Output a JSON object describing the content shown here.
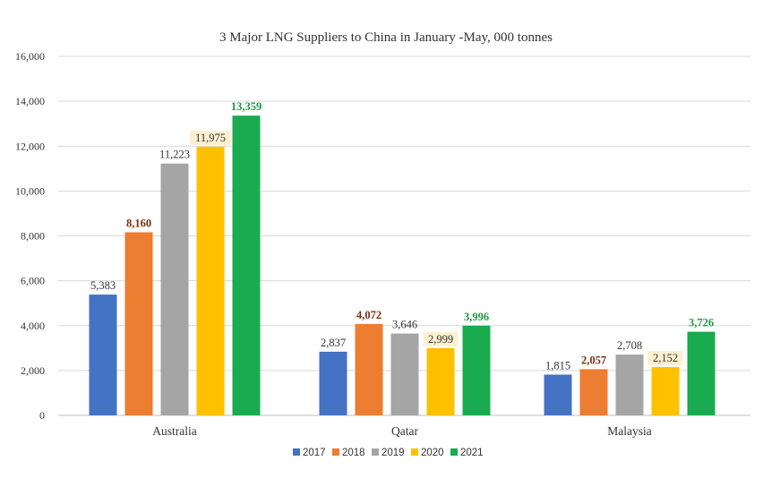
{
  "chart_data": {
    "type": "bar",
    "title": "3 Major LNG Suppliers to China in January -May, 000 tonnes",
    "xlabel": "",
    "ylabel": "",
    "ylim": [
      0,
      16000
    ],
    "yticks": [
      "0",
      "2,000",
      "4,000",
      "6,000",
      "8,000",
      "10,000",
      "12,000",
      "14,000",
      "16,000"
    ],
    "grid": true,
    "legend_position": "bottom",
    "categories": [
      "Australia",
      "Qatar",
      "Malaysia"
    ],
    "series": [
      {
        "name": "2017",
        "color": "#4472c4",
        "values": [
          5383,
          2837,
          1815
        ],
        "labels": [
          "5,383",
          "2,837",
          "1,815"
        ],
        "label_color": "#333333",
        "label_bold": false,
        "label_highlight": ""
      },
      {
        "name": "2018",
        "color": "#ed7d31",
        "values": [
          8160,
          4072,
          2057
        ],
        "labels": [
          "8,160",
          "4,072",
          "2,057"
        ],
        "label_color": "#7a2e0e",
        "label_bold": true,
        "label_highlight": ""
      },
      {
        "name": "2019",
        "color": "#a5a5a5",
        "values": [
          11223,
          3646,
          2708
        ],
        "labels": [
          "11,223",
          "3,646",
          "2,708"
        ],
        "label_color": "#333333",
        "label_bold": false,
        "label_highlight": ""
      },
      {
        "name": "2020",
        "color": "#ffc000",
        "values": [
          11975,
          2999,
          2152
        ],
        "labels": [
          "11,975",
          "2,999",
          "2,152"
        ],
        "label_color": "#333333",
        "label_bold": false,
        "label_highlight": "#fdf0d0"
      },
      {
        "name": "2021",
        "color": "#1aaa50",
        "values": [
          13359,
          3996,
          3726
        ],
        "labels": [
          "13,359",
          "3,996",
          "3,726"
        ],
        "label_color": "#1a9a3e",
        "label_bold": true,
        "label_highlight": ""
      }
    ]
  }
}
